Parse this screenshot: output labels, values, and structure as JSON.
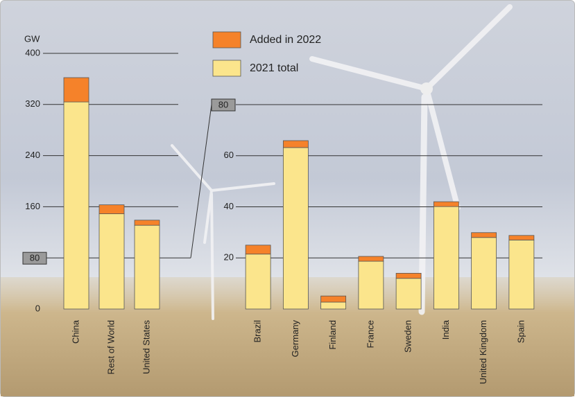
{
  "chart_data": [
    {
      "type": "stacked_bar",
      "y_label": "GW",
      "categories": [
        "China",
        "Rest of World",
        "United States"
      ],
      "series": [
        {
          "name": "2021 total",
          "color": "#fbe58c",
          "values": [
            324,
            149,
            131
          ]
        },
        {
          "name": "Added in 2022",
          "color": "#f5822a",
          "values": [
            38,
            14,
            8
          ]
        }
      ],
      "ylim": [
        0,
        400
      ],
      "yticks": [
        0,
        80,
        160,
        240,
        320,
        400
      ],
      "grid": true
    },
    {
      "type": "stacked_bar",
      "categories": [
        "Brazil",
        "Germany",
        "Finland",
        "France",
        "Sweden",
        "India",
        "United Kingdom",
        "Spain"
      ],
      "series": [
        {
          "name": "2021 total",
          "color": "#fbe58c",
          "values": [
            21.5,
            63.2,
            2.7,
            18.7,
            12,
            40.1,
            28,
            27
          ]
        },
        {
          "name": "Added in 2022",
          "color": "#f5822a",
          "values": [
            3.5,
            2.7,
            2.4,
            1.9,
            2,
            1.9,
            1.9,
            1.8
          ]
        }
      ],
      "ylim": [
        0,
        80
      ],
      "yticks": [
        20,
        40,
        60,
        80
      ],
      "grid": true
    }
  ]
}
